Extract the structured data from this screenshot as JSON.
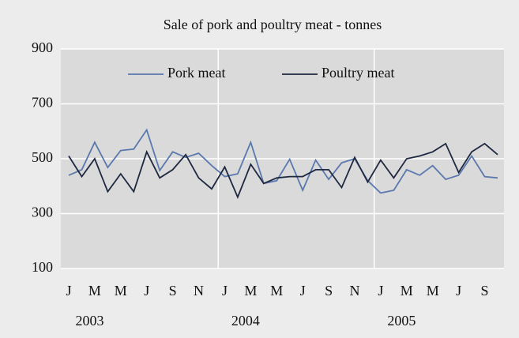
{
  "chart_data": {
    "type": "line",
    "title": "Sale of pork and poultry meat - tonnes",
    "categories": [
      "J",
      null,
      "M",
      null,
      "M",
      null,
      "J",
      null,
      "S",
      null,
      "N",
      null,
      "J",
      null,
      "M",
      null,
      "M",
      null,
      "J",
      null,
      "S",
      null,
      "N",
      null,
      "J",
      null,
      "M",
      null,
      "M",
      null,
      "J",
      null,
      "S",
      null
    ],
    "year_labels": [
      "2003",
      "2004",
      "2005"
    ],
    "series": [
      {
        "name": "Pork meat",
        "color": "#5a78ad",
        "values": [
          440,
          460,
          560,
          468,
          530,
          535,
          605,
          457,
          525,
          505,
          520,
          475,
          435,
          445,
          560,
          410,
          420,
          498,
          385,
          495,
          425,
          485,
          500,
          420,
          375,
          385,
          460,
          440,
          475,
          425,
          440,
          510,
          435,
          430
        ]
      },
      {
        "name": "Poultry meat",
        "color": "#1e2840",
        "values": [
          510,
          435,
          500,
          380,
          445,
          380,
          525,
          430,
          460,
          515,
          430,
          390,
          470,
          360,
          480,
          410,
          430,
          435,
          435,
          460,
          460,
          395,
          505,
          415,
          495,
          430,
          500,
          510,
          525,
          555,
          450,
          525,
          555,
          515
        ]
      }
    ],
    "ylim": [
      100,
      900
    ],
    "yticks": [
      100,
      300,
      500,
      700,
      900
    ],
    "grid": true
  }
}
